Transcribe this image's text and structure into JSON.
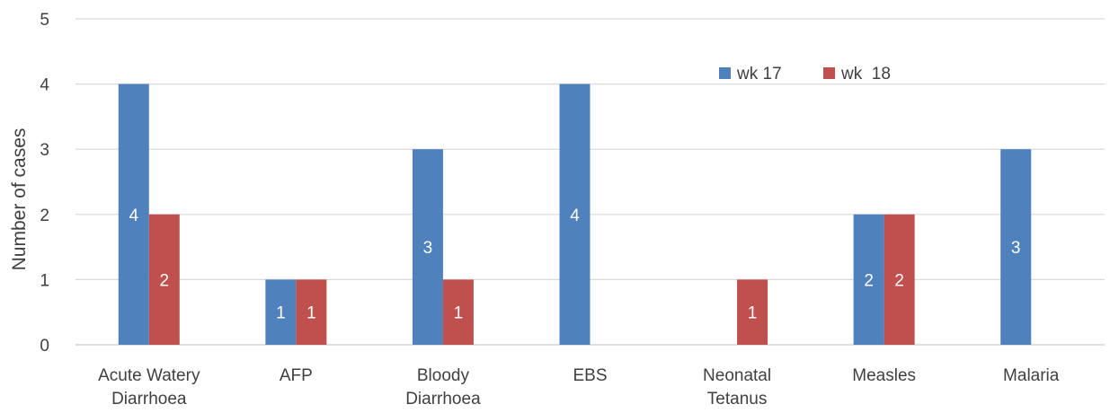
{
  "chart_data": {
    "type": "bar",
    "title": "",
    "xlabel": "",
    "ylabel": "Number of cases",
    "ylim": [
      0,
      5
    ],
    "yticks": [
      0,
      1,
      2,
      3,
      4,
      5
    ],
    "grid": true,
    "legend_position": "top-right",
    "categories": [
      [
        "Acute Watery",
        "Diarrhoea"
      ],
      [
        "AFP"
      ],
      [
        "Bloody",
        "Diarrhoea"
      ],
      [
        "EBS"
      ],
      [
        "Neonatal",
        "Tetanus"
      ],
      [
        "Measles"
      ],
      [
        "Malaria"
      ]
    ],
    "series": [
      {
        "name": "wk 17",
        "color": "#4F81BD",
        "values": [
          4,
          1,
          3,
          4,
          0,
          2,
          3
        ]
      },
      {
        "name": "wk  18",
        "color": "#C0504D",
        "values": [
          2,
          1,
          1,
          0,
          1,
          2,
          0
        ]
      }
    ]
  }
}
